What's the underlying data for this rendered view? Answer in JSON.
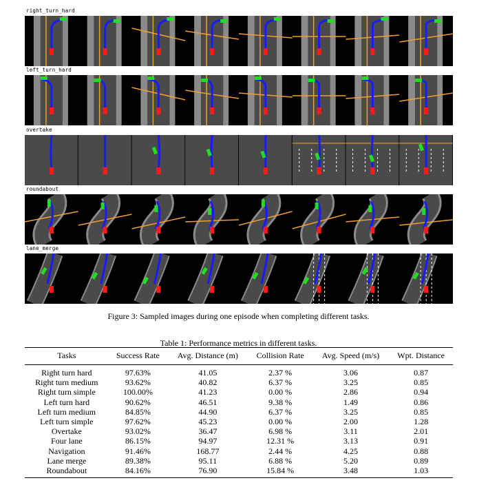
{
  "figure": {
    "rows": [
      {
        "label": "right_turn_hard"
      },
      {
        "label": "left_turn_hard"
      },
      {
        "label": "overtake"
      },
      {
        "label": "roundabout"
      },
      {
        "label": "lane_merge"
      }
    ],
    "frames_per_row": 8,
    "caption": "Figure 3: Sampled images during one episode when completing different tasks.",
    "colors": {
      "road": "#4a4a4a",
      "background": "#000000",
      "curb": "#8a8a8a",
      "route": "#1a1aff",
      "ego": "#ff1a1a",
      "waypoint": "#22dd22",
      "lane_yellow": "#f0a030",
      "lane_white": "#ffffff"
    }
  },
  "table": {
    "caption": "Table 1: Performance metrics in different tasks.",
    "headers": [
      "Tasks",
      "Success Rate",
      "Avg. Distance (m)",
      "Collision Rate",
      "Avg. Speed (m/s)",
      "Wpt. Distance"
    ],
    "rows": [
      [
        "Right turn hard",
        "97.63%",
        "41.05",
        "2.37 %",
        "3.06",
        "0.87"
      ],
      [
        "Right turn medium",
        "93.62%",
        "40.82",
        "6.37 %",
        "3.25",
        "0.85"
      ],
      [
        "Right turn simple",
        "100.00%",
        "41.23",
        "0.00 %",
        "2.86",
        "0.94"
      ],
      [
        "Left turn hard",
        "90.62%",
        "46.51",
        "9.38 %",
        "1.49",
        "0.86"
      ],
      [
        "Left turn medium",
        "84.85%",
        "44.90",
        "6.37 %",
        "3.25",
        "0.85"
      ],
      [
        "Left turn simple",
        "97.62%",
        "45.23",
        "0.00 %",
        "2.00",
        "1.28"
      ],
      [
        "Overtake",
        "93.02%",
        "36.47",
        "6.98 %",
        "3.11",
        "2.01"
      ],
      [
        "Four lane",
        "86.15%",
        "94.97",
        "12.31 %",
        "3.13",
        "0.91"
      ],
      [
        "Navigation",
        "91.46%",
        "168.77",
        "2.44 %",
        "4.25",
        "0.88"
      ],
      [
        "Lane merge",
        "89.38%",
        "95.11",
        "6.88 %",
        "5.20",
        "0.89"
      ],
      [
        "Roundabout",
        "84.16%",
        "76.90",
        "15.84 %",
        "3.48",
        "1.03"
      ]
    ]
  }
}
